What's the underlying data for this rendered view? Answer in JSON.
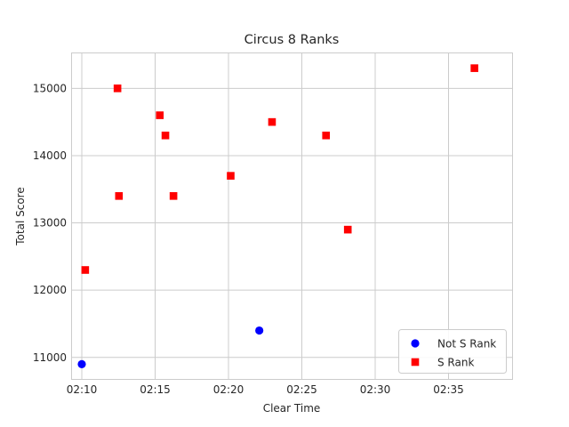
{
  "chart_data": {
    "type": "scatter",
    "title": "Circus 8 Ranks",
    "xlabel": "Clear Time",
    "ylabel": "Total Score",
    "x_unit": "mm:ss",
    "xlim": [
      "02:09:20",
      "02:39:20"
    ],
    "ylim": [
      10680,
      15520
    ],
    "x_ticks": [
      "02:10",
      "02:15",
      "02:20",
      "02:25",
      "02:30",
      "02:35"
    ],
    "y_ticks": [
      11000,
      12000,
      13000,
      14000,
      15000
    ],
    "grid": true,
    "legend_position": "lower right",
    "series": [
      {
        "name": "Not S Rank",
        "color": "#0000ff",
        "marker": "circle",
        "points": [
          {
            "x": "02:10:00",
            "y": 10900
          },
          {
            "x": "02:22:06",
            "y": 11400
          }
        ]
      },
      {
        "name": "S Rank",
        "color": "#ff0000",
        "marker": "square",
        "points": [
          {
            "x": "02:10:14",
            "y": 12300
          },
          {
            "x": "02:12:26",
            "y": 15000
          },
          {
            "x": "02:12:32",
            "y": 13400
          },
          {
            "x": "02:15:19",
            "y": 14600
          },
          {
            "x": "02:15:42",
            "y": 14300
          },
          {
            "x": "02:16:15",
            "y": 13400
          },
          {
            "x": "02:20:09",
            "y": 13700
          },
          {
            "x": "02:22:58",
            "y": 14500
          },
          {
            "x": "02:26:39",
            "y": 14300
          },
          {
            "x": "02:28:08",
            "y": 12900
          },
          {
            "x": "02:36:46",
            "y": 15300
          }
        ]
      }
    ]
  }
}
